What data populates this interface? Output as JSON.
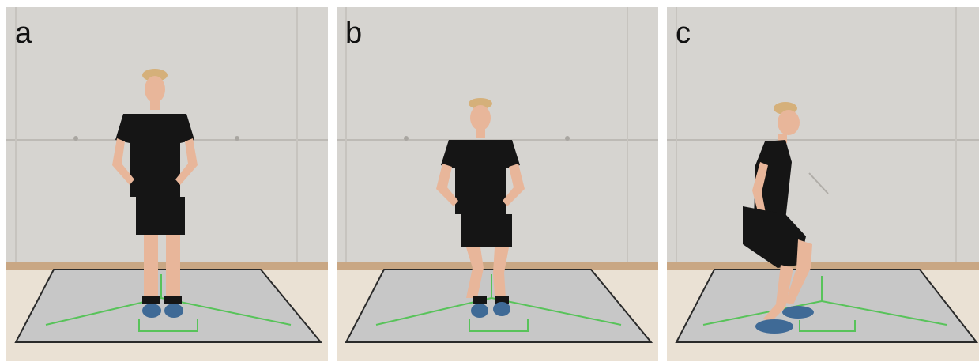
{
  "figure": {
    "panels": [
      {
        "label": "a",
        "pose": "standing-front"
      },
      {
        "label": "b",
        "pose": "single-leg-squat-front"
      },
      {
        "label": "c",
        "pose": "single-leg-squat-side"
      }
    ]
  },
  "colors": {
    "wall": "#d6d4d0",
    "wall_seam": "#bdbab5",
    "baseboard": "#c9a784",
    "floor": "#eae1d4",
    "mat": "#c7c7c7",
    "mat_border": "#2a2a2a",
    "tape": "#58c35a",
    "clothing": "#151515",
    "skin": "#e8b69a",
    "hair": "#d5b07a",
    "shoe": "#3f6a96"
  }
}
